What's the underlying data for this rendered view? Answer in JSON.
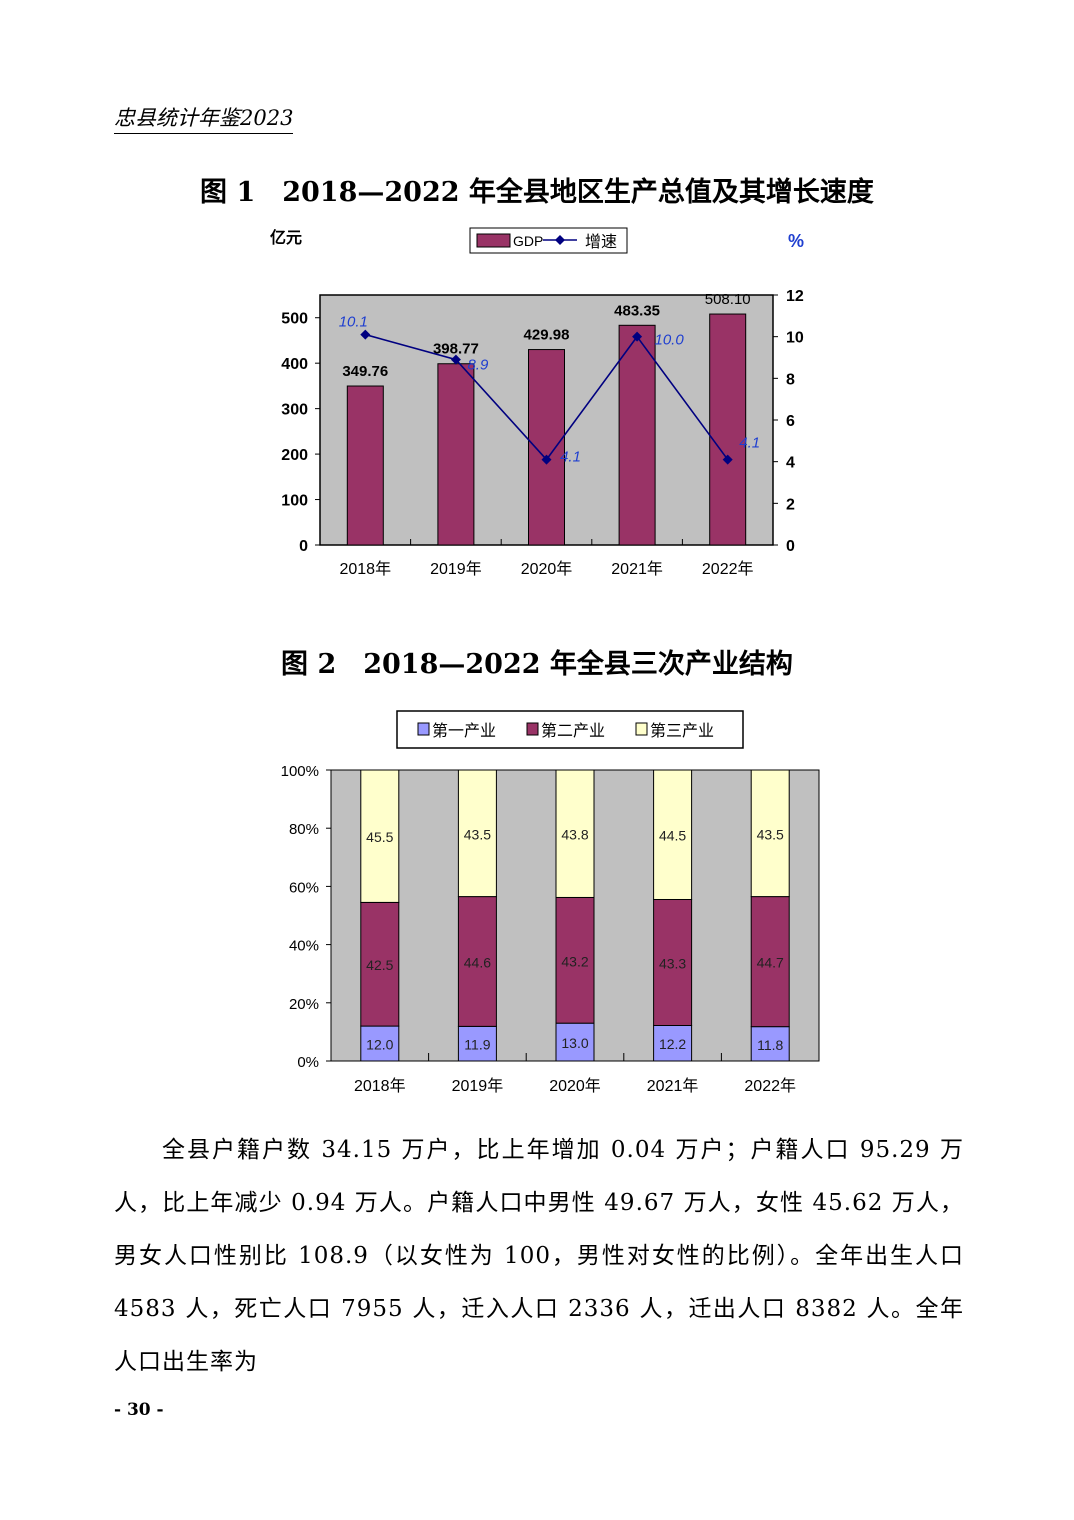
{
  "header": "忠县统计年鉴2023",
  "figure1": {
    "title": "图 1　2018—2022 年全县地区生产总值及其增长速度"
  },
  "figure2": {
    "title": "图 2　2018—2022 年全县三次产业结构"
  },
  "chart_data": [
    {
      "type": "bar+line",
      "categories": [
        "2018年",
        "2019年",
        "2020年",
        "2021年",
        "2022年"
      ],
      "series": [
        {
          "name": "GDP",
          "type": "bar",
          "axis": "left",
          "values": [
            349.76,
            398.77,
            429.98,
            483.35,
            508.1
          ],
          "labels": [
            "349.76",
            "398.77",
            "429.98",
            "483.35",
            "508.10"
          ],
          "color": "#993366"
        },
        {
          "name": "增速",
          "type": "line",
          "axis": "right",
          "values": [
            10.1,
            8.9,
            4.1,
            10.0,
            4.1
          ],
          "labels": [
            "10.1",
            "8.9",
            "4.1",
            "10.0",
            "4.1"
          ],
          "color": "#000080"
        }
      ],
      "ylabel_left": "亿元",
      "ylabel_right": "%",
      "ylim_left": [
        0,
        550
      ],
      "yticks_left": [
        "0",
        "100",
        "200",
        "300",
        "400",
        "500"
      ],
      "ylim_right": [
        0,
        12
      ],
      "yticks_right": [
        "0",
        "2",
        "4",
        "6",
        "8",
        "10",
        "12"
      ],
      "background": "#c0c0c0",
      "grid": false,
      "legend": "top-center"
    },
    {
      "type": "stacked-bar-100",
      "categories": [
        "2018年",
        "2019年",
        "2020年",
        "2021年",
        "2022年"
      ],
      "series": [
        {
          "name": "第一产业",
          "values": [
            12.0,
            11.9,
            13.0,
            12.2,
            11.8
          ],
          "labels": [
            "12.0",
            "11.9",
            "13.0",
            "12.2",
            "11.8"
          ],
          "color": "#9999ff"
        },
        {
          "name": "第二产业",
          "values": [
            42.5,
            44.6,
            43.2,
            43.3,
            44.7
          ],
          "labels": [
            "42.5",
            "44.6",
            "43.2",
            "43.3",
            "44.7"
          ],
          "color": "#993366"
        },
        {
          "name": "第三产业",
          "values": [
            45.5,
            43.5,
            43.8,
            44.5,
            43.5
          ],
          "labels": [
            "45.5",
            "43.5",
            "43.8",
            "44.5",
            "43.5"
          ],
          "color": "#ffffcc"
        }
      ],
      "ylim": [
        0,
        100
      ],
      "yticks": [
        "0%",
        "20%",
        "40%",
        "60%",
        "80%",
        "100%"
      ],
      "background": "#c0c0c0",
      "grid": false,
      "legend": "top-center"
    }
  ],
  "body": {
    "paragraph": "全县户籍户数 34.15 万户，比上年增加 0.04 万户；户籍人口 95.29 万人，比上年减少 0.94 万人。户籍人口中男性 49.67 万人，女性 45.62 万人，男女人口性别比 108.9（以女性为 100，男性对女性的比例）。全年出生人口 4583 人，死亡人口 7955 人，迁入人口 2336 人，迁出人口 8382 人。全年人口出生率为"
  },
  "page_number": "- 30 -"
}
